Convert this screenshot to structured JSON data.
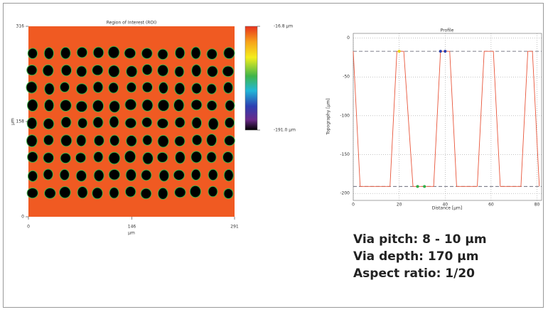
{
  "chart_data": [
    {
      "type": "heatmap",
      "title": "Region of Interest (ROI)",
      "x_label": "µm",
      "y_label": "µm",
      "xlim": [
        0,
        291
      ],
      "xticks": [
        0,
        146,
        291
      ],
      "ylim": [
        0,
        316
      ],
      "yticks": [
        0,
        158,
        316
      ],
      "colorbar_lim": [
        -191,
        -16.8
      ],
      "colorbar_ticks": [
        {
          "value": -16.8,
          "label": "-16.8 µm"
        },
        {
          "value": -191,
          "label": "-191.0 µm"
        }
      ]
    },
    {
      "type": "line",
      "title": "Profile",
      "x_label": "Distance [µm]",
      "y_label": "Topography [µm]",
      "x": [
        0,
        3,
        16,
        19,
        22,
        26,
        35,
        38,
        42,
        45,
        54,
        57,
        61,
        64,
        73,
        76,
        78,
        81
      ],
      "series": [
        {
          "color": "#e8553a",
          "values": [
            -17,
            -191,
            -191,
            -17,
            -17,
            -191,
            -191,
            -17,
            -17,
            -191,
            -191,
            -17,
            -17,
            -191,
            -191,
            -17,
            -17,
            -191
          ]
        }
      ],
      "reference_lines": [
        -17,
        -191
      ],
      "markers": [
        {
          "x": 20,
          "y": -17,
          "color": "#e8d800"
        },
        {
          "x": 38,
          "y": -17,
          "color": "#2b3fb0"
        },
        {
          "x": 40,
          "y": -17,
          "color": "#2b3fb0"
        },
        {
          "x": 28,
          "y": -191,
          "color": "#2fb04a"
        },
        {
          "x": 31,
          "y": -191,
          "color": "#2fb04a"
        }
      ],
      "xlim": [
        0,
        82
      ],
      "xticks": [
        0,
        20,
        40,
        60,
        80
      ],
      "ylim": [
        -209,
        6
      ],
      "yticks": [
        0,
        -50,
        -100,
        -150,
        -200
      ],
      "grid": true
    }
  ],
  "notes": [
    "Via pitch: 8 - 10 µm",
    "Via depth: 170 µm",
    "Aspect ratio: 1/20"
  ]
}
